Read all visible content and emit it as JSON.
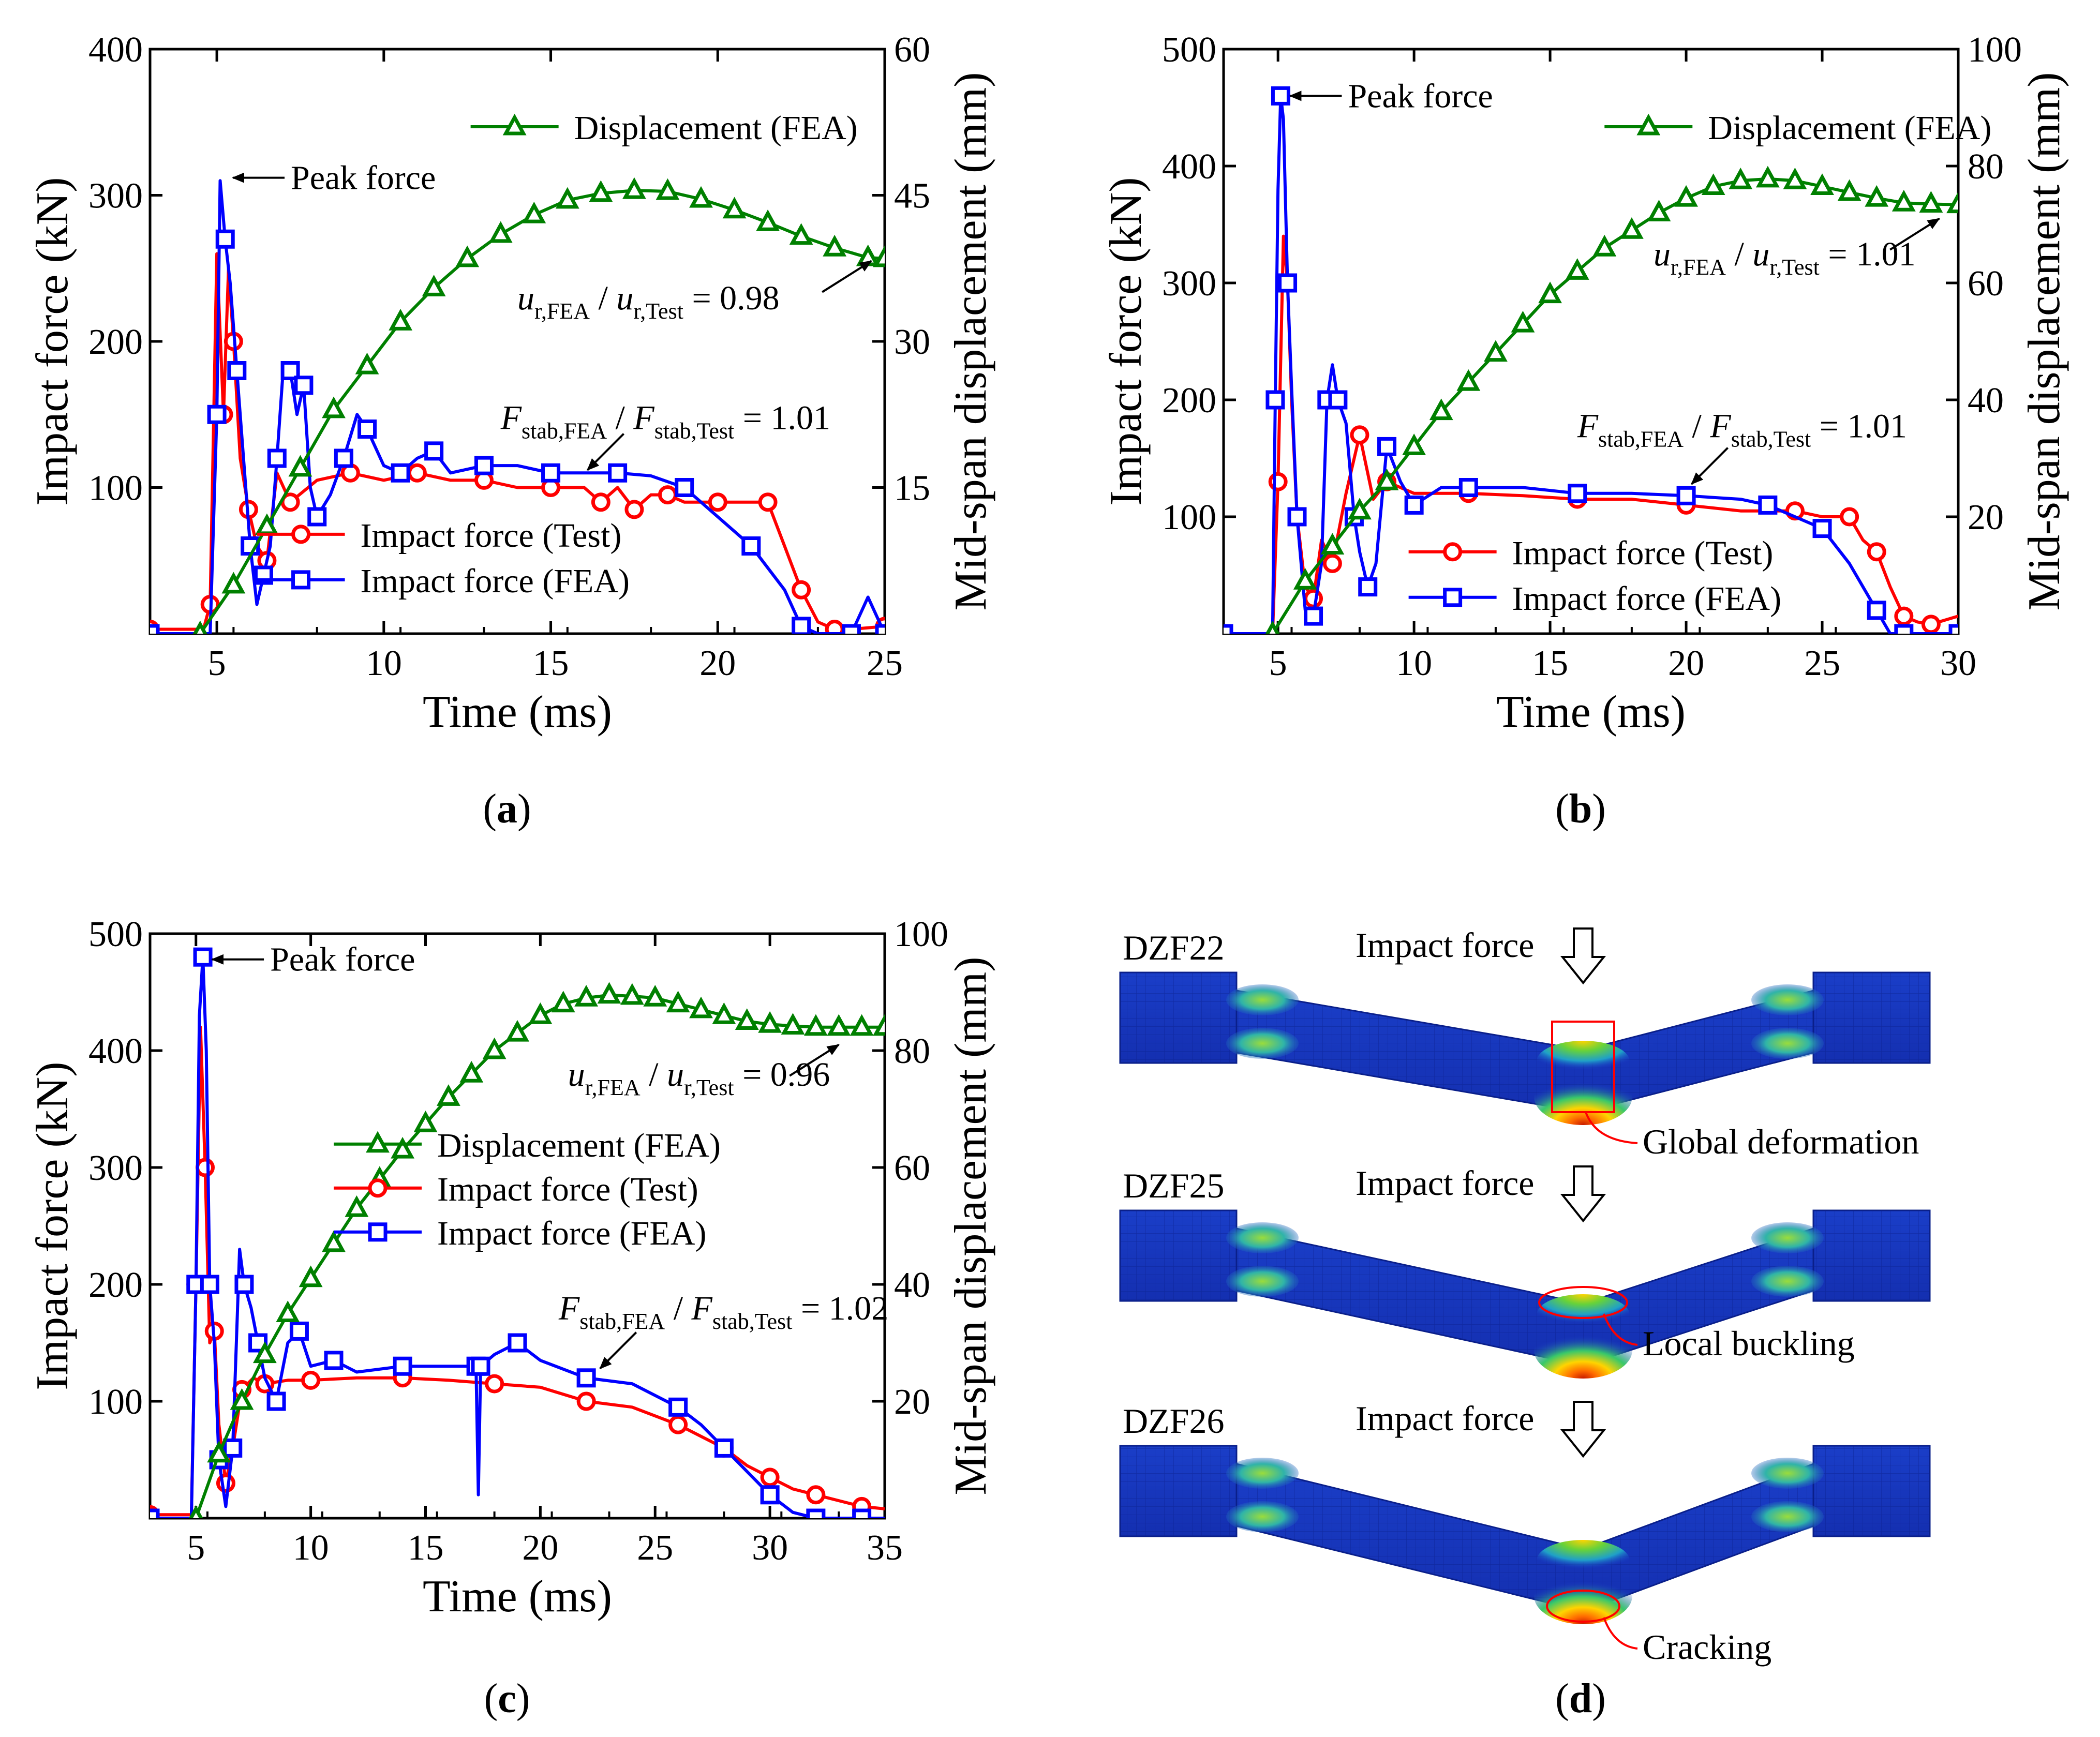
{
  "colors": {
    "test": "#ff0000",
    "fea_force": "#0000ff",
    "displacement": "#008000",
    "axis": "#000000",
    "mesh_base": "#1f37c8"
  },
  "chart_data": [
    {
      "id": "a",
      "type": "line",
      "panel_label": "a",
      "xlabel": "Time (ms)",
      "ylabel": "Impact force (kN)",
      "y2label": "Mid-span displacement  (mm)",
      "xlim": [
        3,
        25
      ],
      "ylim": [
        0,
        400
      ],
      "y2lim": [
        0,
        60
      ],
      "xticks": [
        5,
        10,
        15,
        20,
        25
      ],
      "yticks": [
        100,
        200,
        300,
        400
      ],
      "y2ticks": [
        15,
        30,
        45,
        60
      ],
      "ytick_labels": [
        "100",
        "200",
        "300",
        "400"
      ],
      "y2tick_labels": [
        "15",
        "30",
        "45",
        "60"
      ],
      "legend_top": [
        {
          "name": "Displacement (FEA)",
          "series": "disp"
        }
      ],
      "legend_bottom": [
        {
          "name": "Impact force (Test)",
          "series": "test"
        },
        {
          "name": "Impact force (FEA)",
          "series": "fea"
        }
      ],
      "peak_label": "Peak force",
      "peak": [
        5.2,
        312
      ],
      "ratio_u": {
        "base": "u",
        "sub1": "r,FEA",
        "sub2": "r,Test",
        "value": "= 0.98",
        "text_at": [
          14.0,
          222
        ],
        "arrow_to": [
          24.6,
          255
        ]
      },
      "ratio_f": {
        "base": "F",
        "sub1": "stab,FEA",
        "sub2": "stab,Test",
        "value": "= 1.01",
        "text_at": [
          13.5,
          140
        ],
        "arrow_to": [
          16.1,
          112
        ]
      },
      "series": [
        {
          "name": "Impact force (Test)",
          "key": "test",
          "axis": "y",
          "x": [
            3,
            4.6,
            4.8,
            5.0,
            5.2,
            5.35,
            5.5,
            5.7,
            5.95,
            6.2,
            6.5,
            6.8,
            7.2,
            8,
            9,
            10,
            11,
            12,
            13,
            14,
            15,
            16,
            16.5,
            17,
            17.5,
            18,
            18.5,
            19,
            20,
            21,
            21.5,
            22,
            22.5,
            23,
            23.5,
            24,
            25
          ],
          "values": [
            3,
            3,
            20,
            260,
            150,
            250,
            200,
            120,
            85,
            60,
            50,
            110,
            90,
            105,
            110,
            105,
            110,
            105,
            105,
            100,
            100,
            100,
            90,
            100,
            85,
            95,
            95,
            90,
            90,
            90,
            90,
            60,
            30,
            8,
            3,
            3,
            5
          ]
        },
        {
          "name": "Impact force (FEA)",
          "key": "fea",
          "axis": "y",
          "x": [
            3,
            4.8,
            5.0,
            5.1,
            5.25,
            5.4,
            5.6,
            5.8,
            6.0,
            6.2,
            6.4,
            6.6,
            6.8,
            7.0,
            7.2,
            7.4,
            7.6,
            7.8,
            8.0,
            8.4,
            8.8,
            9.2,
            9.5,
            10,
            10.5,
            11,
            11.5,
            12,
            13,
            14,
            15,
            16,
            17,
            18,
            19,
            20,
            21,
            22,
            22.5,
            23,
            24,
            24.5,
            25
          ],
          "values": [
            0,
            0,
            150,
            310,
            270,
            240,
            180,
            120,
            60,
            20,
            40,
            60,
            120,
            185,
            180,
            150,
            170,
            100,
            80,
            95,
            120,
            150,
            140,
            115,
            110,
            120,
            125,
            110,
            115,
            115,
            110,
            110,
            110,
            108,
            100,
            80,
            60,
            30,
            5,
            0,
            0,
            25,
            0
          ]
        },
        {
          "name": "Displacement (FEA)",
          "key": "disp",
          "axis": "y2",
          "x": [
            4.5,
            5.5,
            6.5,
            7.5,
            8.5,
            9.5,
            10.5,
            11.5,
            12.5,
            13.5,
            14.5,
            15.5,
            16.5,
            17.5,
            18.5,
            19.5,
            20.5,
            21.5,
            22.5,
            23.5,
            24.5,
            25
          ],
          "values": [
            0,
            5,
            11,
            17,
            23,
            27.5,
            32,
            35.5,
            38.5,
            41,
            43,
            44.5,
            45.2,
            45.5,
            45.4,
            44.6,
            43.5,
            42.2,
            40.8,
            39.6,
            38.6,
            38.5
          ]
        }
      ]
    },
    {
      "id": "b",
      "type": "line",
      "panel_label": "b",
      "xlabel": "Time (ms)",
      "ylabel": "Impact force (kN)",
      "y2label": "Mid-span displacement  (mm)",
      "xlim": [
        3,
        30
      ],
      "ylim": [
        0,
        500
      ],
      "y2lim": [
        0,
        100
      ],
      "xticks": [
        5,
        10,
        15,
        20,
        25,
        30
      ],
      "yticks": [
        100,
        200,
        300,
        400,
        500
      ],
      "y2ticks": [
        20,
        40,
        60,
        80,
        100
      ],
      "ytick_labels": [
        "100",
        "200",
        "300",
        "400",
        "500"
      ],
      "y2tick_labels": [
        "20",
        "40",
        "60",
        "80",
        "100"
      ],
      "legend_top": [
        {
          "name": "Displacement (FEA)",
          "series": "disp"
        }
      ],
      "legend_bottom": [
        {
          "name": "Impact force (Test)",
          "series": "test"
        },
        {
          "name": "Impact force (FEA)",
          "series": "fea"
        }
      ],
      "peak_label": "Peak force",
      "peak": [
        5.1,
        460
      ],
      "ratio_u": {
        "base": "u",
        "sub1": "r,FEA",
        "sub2": "r,Test",
        "value": "= 1.01",
        "text_at": [
          18.8,
          315
        ],
        "arrow_to": [
          29.3,
          355
        ]
      },
      "ratio_f": {
        "base": "F",
        "sub1": "stab,FEA",
        "sub2": "stab,Test",
        "value": "= 1.01",
        "text_at": [
          16.0,
          168
        ],
        "arrow_to": [
          20.2,
          128
        ]
      },
      "series": [
        {
          "name": "Impact force (Test)",
          "key": "test",
          "axis": "y",
          "x": [
            3,
            4.8,
            5.0,
            5.2,
            5.35,
            5.5,
            5.7,
            6.0,
            6.3,
            6.6,
            7,
            7.5,
            8,
            8.5,
            9,
            10,
            12,
            14,
            16,
            18,
            20,
            22,
            24,
            25,
            26,
            26.5,
            27,
            27.5,
            28,
            28.5,
            29,
            30
          ],
          "values": [
            0,
            0,
            130,
            340,
            300,
            200,
            100,
            40,
            30,
            80,
            60,
            120,
            170,
            115,
            130,
            120,
            120,
            118,
            115,
            115,
            110,
            105,
            105,
            100,
            100,
            80,
            70,
            40,
            15,
            10,
            8,
            15
          ]
        },
        {
          "name": "Impact force (FEA)",
          "key": "fea",
          "axis": "y",
          "x": [
            3,
            4.8,
            4.9,
            5.0,
            5.1,
            5.2,
            5.35,
            5.5,
            5.7,
            6.0,
            6.3,
            6.6,
            6.8,
            7.0,
            7.2,
            7.5,
            7.8,
            8.0,
            8.3,
            8.6,
            9,
            9.5,
            10,
            11,
            12,
            14,
            16,
            18,
            20,
            22,
            23,
            24,
            25,
            26,
            27,
            27.5,
            28,
            29,
            30
          ],
          "values": [
            0,
            0,
            200,
            380,
            460,
            440,
            300,
            210,
            100,
            20,
            15,
            60,
            200,
            230,
            200,
            180,
            100,
            70,
            40,
            60,
            160,
            130,
            110,
            125,
            125,
            125,
            120,
            120,
            118,
            115,
            110,
            100,
            90,
            60,
            20,
            0,
            0,
            0,
            0
          ]
        },
        {
          "name": "Displacement (FEA)",
          "key": "disp",
          "axis": "y2",
          "x": [
            4.8,
            6,
            7,
            8,
            9,
            10,
            11,
            12,
            13,
            14,
            15,
            16,
            17,
            18,
            19,
            20,
            21,
            22,
            23,
            24,
            25,
            26,
            27,
            28,
            29,
            30
          ],
          "values": [
            0,
            9,
            15,
            21,
            26,
            32,
            38,
            43,
            48,
            53,
            58,
            62,
            66,
            69,
            72,
            74.5,
            76.5,
            77.5,
            77.8,
            77.5,
            76.5,
            75.5,
            74.5,
            73.7,
            73.5,
            73.4
          ]
        }
      ]
    },
    {
      "id": "c",
      "type": "line",
      "panel_label": "c",
      "xlabel": "Time (ms)",
      "ylabel": "Impact force (kN)",
      "y2label": "Mid-span displacement  (mm)",
      "xlim": [
        3,
        35
      ],
      "ylim": [
        0,
        500
      ],
      "y2lim": [
        0,
        100
      ],
      "xticks": [
        5,
        10,
        15,
        20,
        25,
        30,
        35
      ],
      "yticks": [
        100,
        200,
        300,
        400,
        500
      ],
      "y2ticks": [
        20,
        40,
        60,
        80,
        100
      ],
      "ytick_labels": [
        "100",
        "200",
        "300",
        "400",
        "500"
      ],
      "y2tick_labels": [
        "20",
        "40",
        "60",
        "80",
        "100"
      ],
      "legend_top": [],
      "legend_bottom": [
        {
          "name": "Displacement (FEA)",
          "series": "disp"
        },
        {
          "name": "Impact force (Test)",
          "series": "test"
        },
        {
          "name": "Impact force (FEA)",
          "series": "fea"
        }
      ],
      "peak_label": "Peak force",
      "peak": [
        5.3,
        478
      ],
      "ratio_u": {
        "base": "u",
        "sub1": "r,FEA",
        "sub2": "r,Test",
        "value": "= 0.96",
        "text_at": [
          21.2,
          370
        ],
        "arrow_to": [
          33.0,
          405
        ]
      },
      "ratio_f": {
        "base": "F",
        "sub1": "stab,FEA",
        "sub2": "stab,Test",
        "value": "= 1.02",
        "text_at": [
          20.8,
          170
        ],
        "arrow_to": [
          22.6,
          128
        ]
      },
      "series": [
        {
          "name": "Impact force (Test)",
          "key": "test",
          "axis": "y",
          "x": [
            3,
            4.8,
            5.0,
            5.2,
            5.4,
            5.6,
            5.8,
            6.0,
            6.3,
            6.6,
            7,
            7.5,
            8,
            9,
            10,
            12,
            14,
            16,
            18,
            20,
            22,
            24,
            26,
            27,
            28,
            29,
            30,
            31,
            32,
            33,
            34,
            35
          ],
          "values": [
            3,
            3,
            200,
            420,
            300,
            150,
            160,
            80,
            30,
            60,
            110,
            120,
            115,
            118,
            118,
            120,
            120,
            118,
            115,
            112,
            100,
            95,
            80,
            70,
            60,
            45,
            35,
            25,
            20,
            15,
            10,
            8
          ]
        },
        {
          "name": "Impact force (FEA)",
          "key": "fea",
          "axis": "y",
          "x": [
            3,
            4.8,
            5.0,
            5.15,
            5.3,
            5.45,
            5.6,
            5.8,
            6.0,
            6.3,
            6.6,
            6.9,
            7.1,
            7.4,
            7.7,
            8,
            8.5,
            9,
            9.5,
            10,
            11,
            12,
            14,
            16,
            17.2,
            17.3,
            17.4,
            18,
            19,
            20,
            22,
            24,
            26,
            27,
            28,
            29,
            30,
            31,
            32,
            33,
            34,
            35
          ],
          "values": [
            0,
            0,
            200,
            430,
            480,
            400,
            200,
            150,
            50,
            10,
            60,
            230,
            200,
            180,
            150,
            120,
            100,
            150,
            160,
            130,
            135,
            125,
            130,
            130,
            130,
            20,
            130,
            140,
            150,
            135,
            120,
            115,
            95,
            80,
            60,
            40,
            20,
            5,
            0,
            0,
            0,
            0
          ]
        },
        {
          "name": "Displacement (FEA)",
          "key": "disp",
          "axis": "y2",
          "x": [
            5,
            6,
            7,
            8,
            9,
            10,
            11,
            12,
            13,
            14,
            15,
            16,
            17,
            18,
            19,
            20,
            21,
            22,
            23,
            24,
            25,
            26,
            27,
            28,
            29,
            30,
            31,
            32,
            33,
            34,
            35
          ],
          "values": [
            0,
            11,
            20,
            28,
            35,
            41,
            47,
            53,
            58,
            63,
            67.5,
            72,
            76,
            80,
            83,
            86,
            88,
            89,
            89.5,
            89.3,
            89,
            88,
            87,
            86,
            85,
            84.5,
            84.2,
            84,
            84,
            84,
            84
          ]
        }
      ]
    }
  ],
  "panel_d": {
    "panel_label": "d",
    "beams": [
      {
        "specimen": "DZF22",
        "load_label": "Impact force",
        "annotation": "Global deformation",
        "marker": "rect",
        "sag": 0.3
      },
      {
        "specimen": "DZF25",
        "load_label": "Impact force",
        "annotation": "Local buckling",
        "marker": "ellipse-top",
        "sag": 0.42
      },
      {
        "specimen": "DZF26",
        "load_label": "Impact force",
        "annotation": "Cracking",
        "marker": "ellipse-bottom",
        "sag": 0.5
      }
    ]
  }
}
